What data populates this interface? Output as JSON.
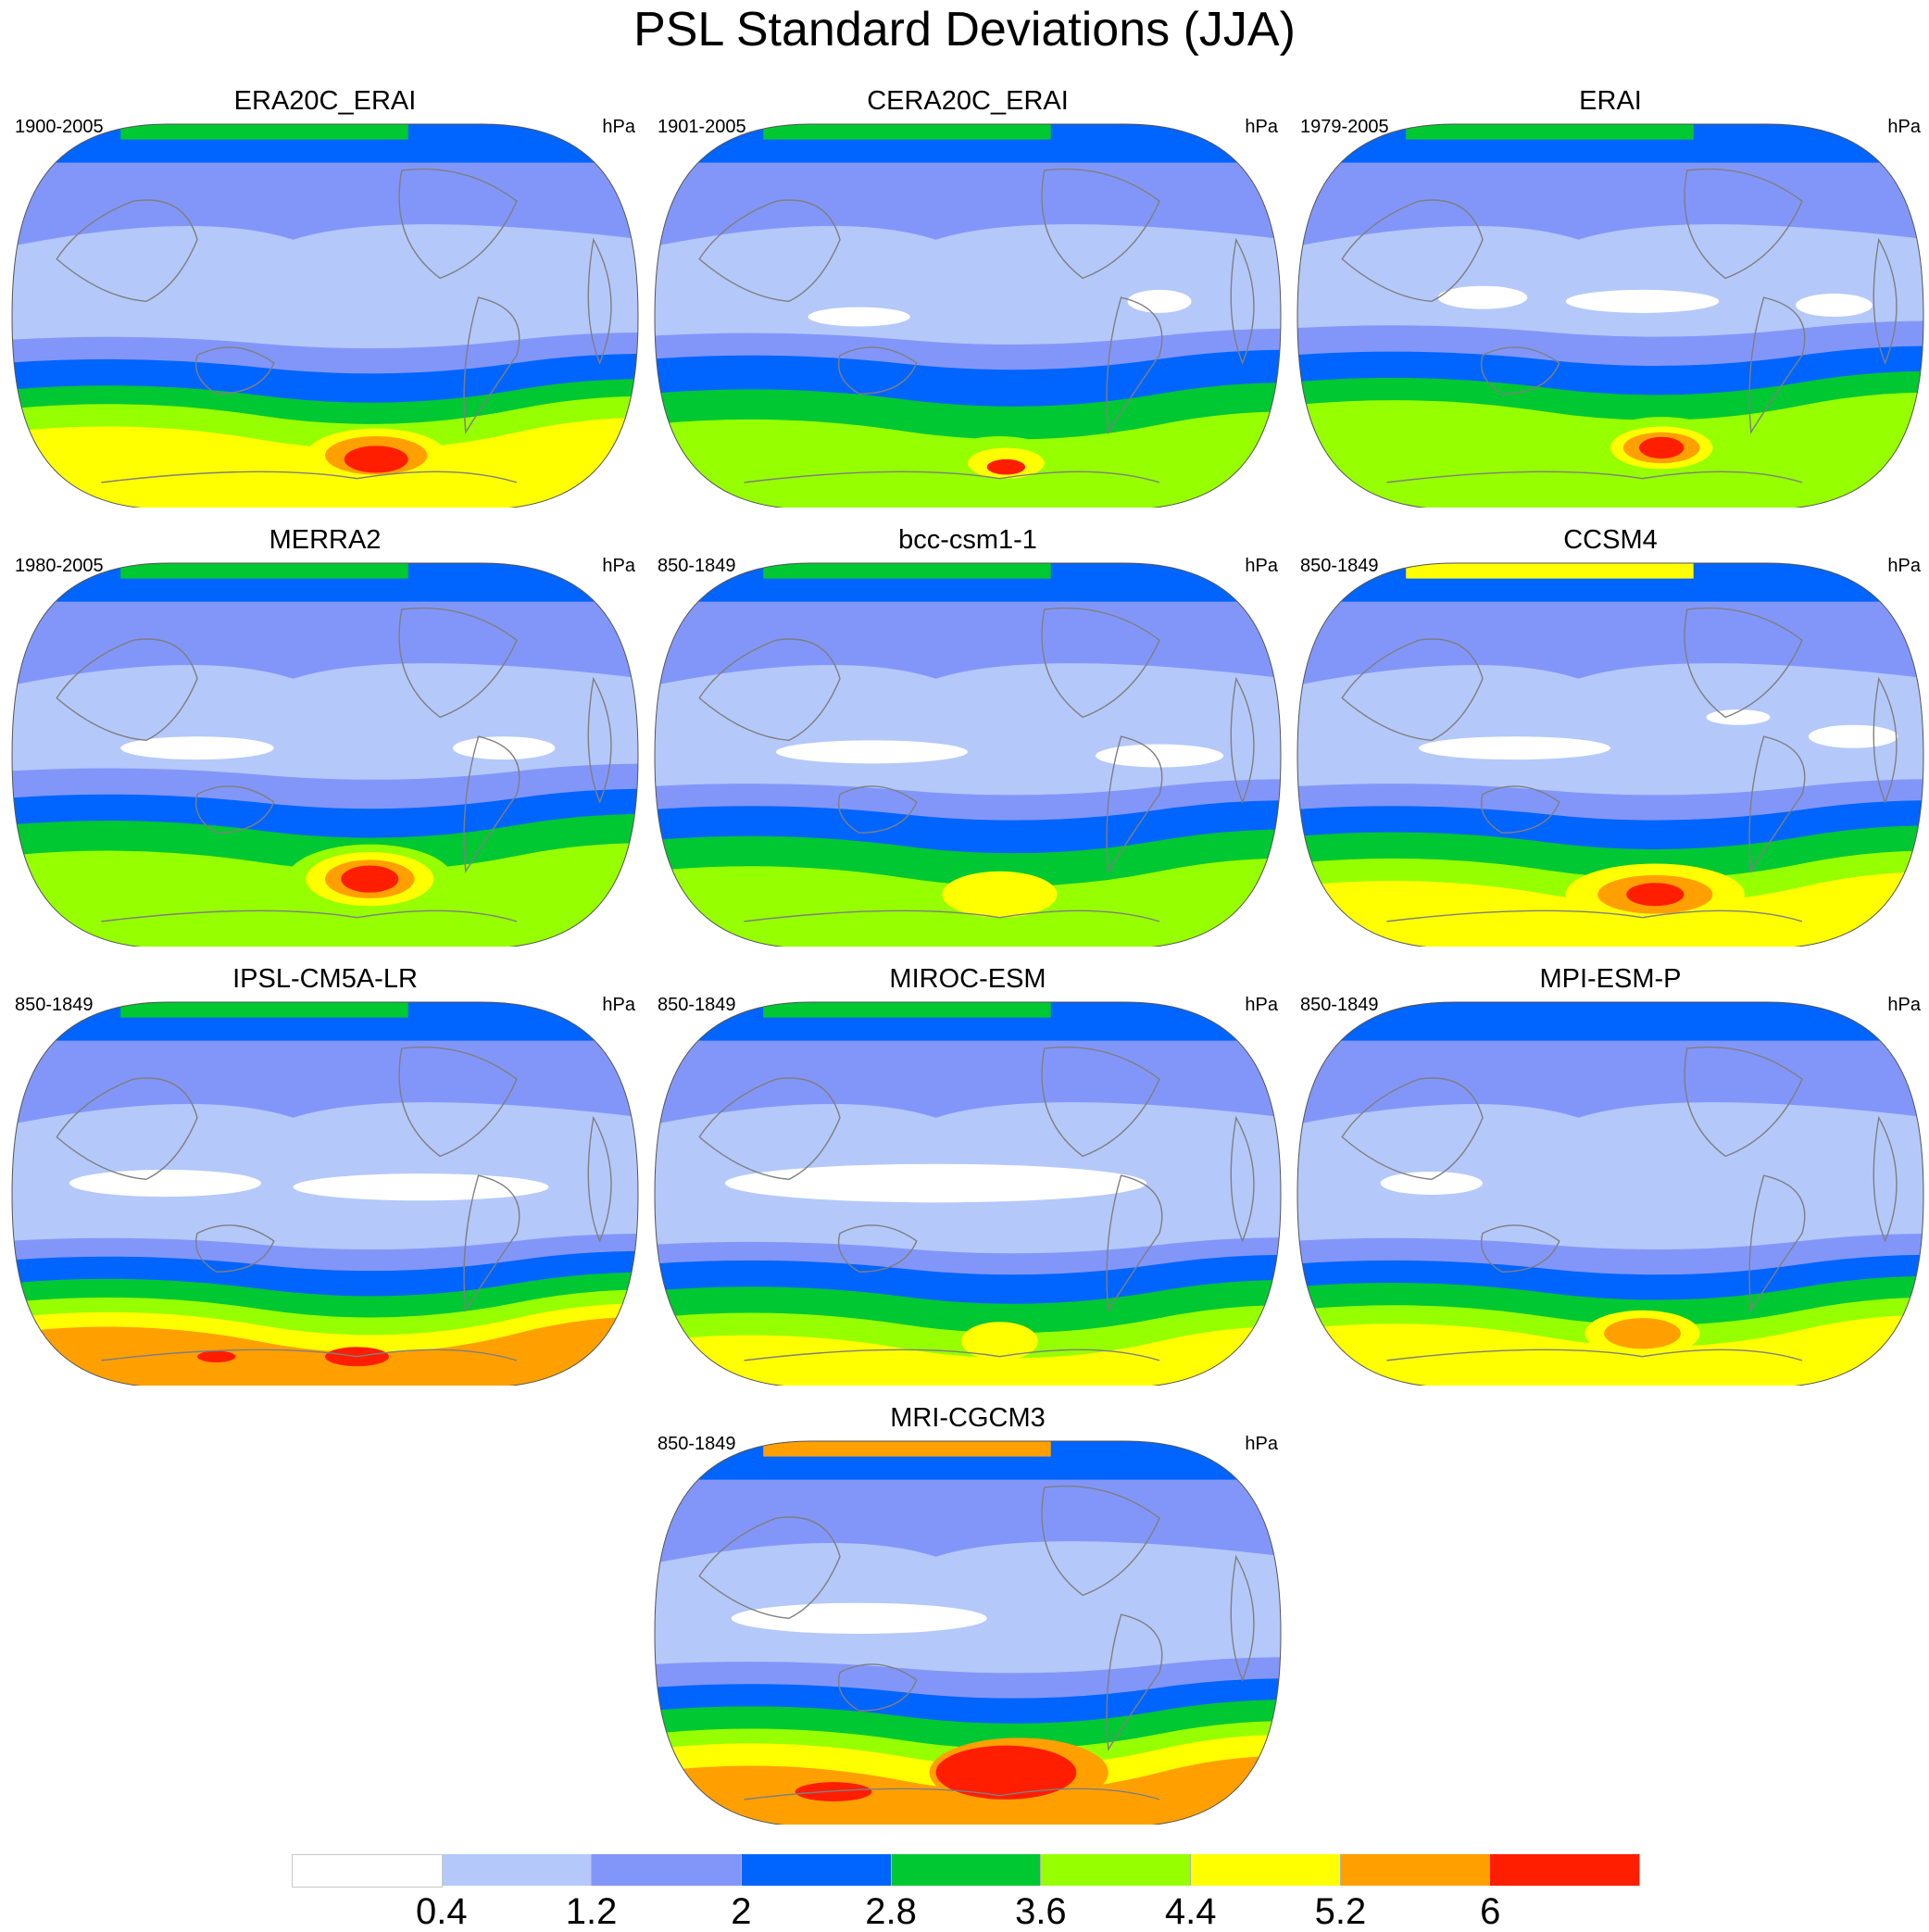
{
  "title": "PSL Standard Deviations (JJA)",
  "colorbar": {
    "colors": [
      "#ffffff",
      "#b4c8fa",
      "#8296fa",
      "#0064ff",
      "#00c832",
      "#96ff00",
      "#ffff00",
      "#ffa000",
      "#ff1e00"
    ],
    "labels": [
      "0.4",
      "1.2",
      "2",
      "2.8",
      "3.6",
      "4.4",
      "5.2",
      "6"
    ]
  },
  "panels": [
    {
      "name": "ERA20C_ERAI",
      "years": "1900-2005",
      "unit": "hPa"
    },
    {
      "name": "CERA20C_ERAI",
      "years": "1901-2005",
      "unit": "hPa"
    },
    {
      "name": "ERAI",
      "years": "1979-2005",
      "unit": "hPa"
    },
    {
      "name": "MERRA2",
      "years": "1980-2005",
      "unit": "hPa"
    },
    {
      "name": "bcc-csm1-1",
      "years": "850-1849",
      "unit": "hPa"
    },
    {
      "name": "CCSM4",
      "years": "850-1849",
      "unit": "hPa"
    },
    {
      "name": "IPSL-CM5A-LR",
      "years": "850-1849",
      "unit": "hPa"
    },
    {
      "name": "MIROC-ESM",
      "years": "850-1849",
      "unit": "hPa"
    },
    {
      "name": "MPI-ESM-P",
      "years": "850-1849",
      "unit": "hPa"
    },
    {
      "name": "MRI-CGCM3",
      "years": "850-1849",
      "unit": "hPa"
    }
  ]
}
